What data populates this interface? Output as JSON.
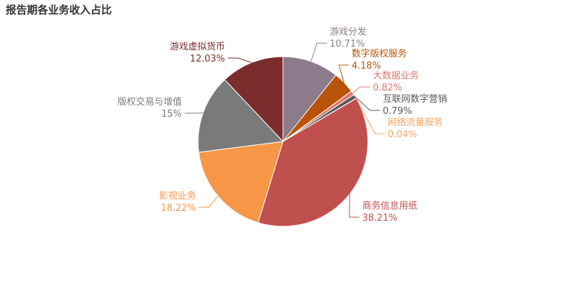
{
  "chart_data": {
    "type": "pie",
    "title": "报告期各业务收入占比",
    "slices": [
      {
        "name": "游戏分发",
        "value": 10.71,
        "label": "10.71%",
        "color": "#8c7b8a"
      },
      {
        "name": "数字版权服务",
        "value": 4.18,
        "label": "4.18%",
        "color": "#b85309"
      },
      {
        "name": "大数据业务",
        "value": 0.82,
        "label": "0.82%",
        "color": "#d9786e"
      },
      {
        "name": "互联网数字营销",
        "value": 0.79,
        "label": "0.79%",
        "color": "#595959"
      },
      {
        "name": "网络流量服务",
        "value": 0.04,
        "label": "0.04%",
        "color": "#f7a35c"
      },
      {
        "name": "商务信息用纸",
        "value": 38.21,
        "label": "38.21%",
        "color": "#c0504d"
      },
      {
        "name": "影视业务",
        "value": 18.22,
        "label": "18.22%",
        "color": "#f79646"
      },
      {
        "name": "版权交易与增值",
        "value": 15,
        "label": "15%",
        "color": "#7a7a7a"
      },
      {
        "name": "游戏虚拟货币",
        "value": 12.03,
        "label": "12.03%",
        "color": "#7b2c2c"
      }
    ],
    "label_colors": [
      "#8c7b8a",
      "#b85309",
      "#d9786e",
      "#595959",
      "#f7a35c",
      "#c0504d",
      "#f79646",
      "#7a7a7a",
      "#7b2c2c"
    ]
  }
}
